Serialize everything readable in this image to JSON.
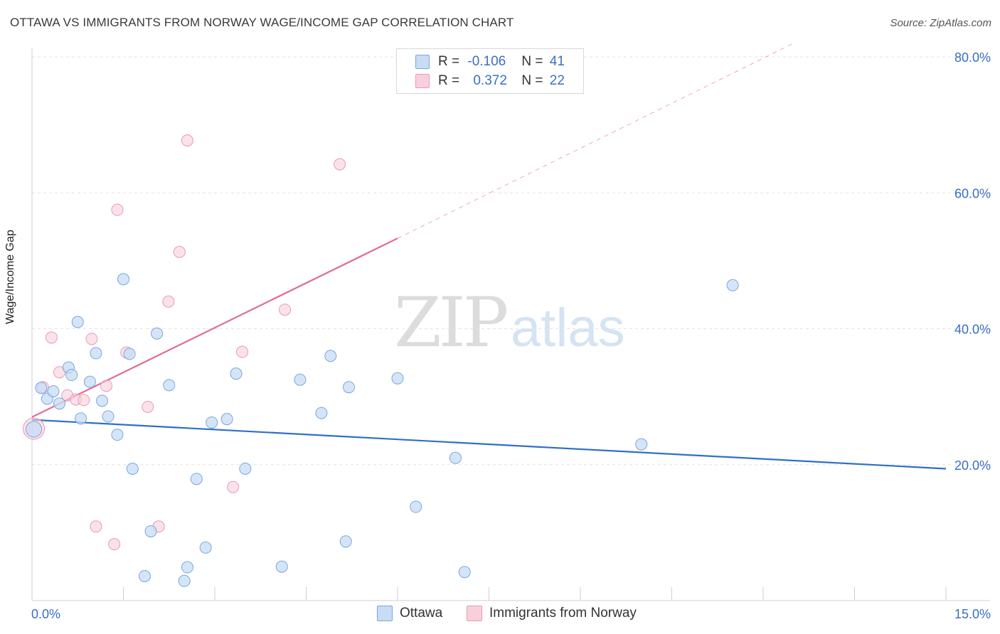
{
  "header": {
    "title": "OTTAWA VS IMMIGRANTS FROM NORWAY WAGE/INCOME GAP CORRELATION CHART",
    "source": "Source: ZipAtlas.com"
  },
  "watermark": {
    "zip": "ZIP",
    "atlas": "atlas"
  },
  "legend": {
    "rows": [
      {
        "r_label": "R = ",
        "r_value": "-0.106",
        "n_label": "N = ",
        "n_value": "41",
        "color": "#a9c8ef"
      },
      {
        "r_label": "R = ",
        "r_value": "0.372",
        "n_label": "N = ",
        "n_value": "22",
        "color": "#f5b8cb"
      }
    ]
  },
  "bottom_legend": [
    {
      "label": "Ottawa",
      "color": "#a9c8ef"
    },
    {
      "label": "Immigrants from Norway",
      "color": "#f5b8cb"
    }
  ],
  "colors": {
    "ottawa_fill": "#c7dcf5",
    "ottawa_stroke": "#7aa6de",
    "ottawa_line": "#2f6fc7",
    "norway_fill": "#f9cfdc",
    "norway_stroke": "#e89ab3",
    "norway_line": "#e06a94",
    "tick_label": "#3a6fc0",
    "grid": "#e3e3e3"
  },
  "chart_data": {
    "type": "scatter",
    "title": "OTTAWA VS IMMIGRANTS FROM NORWAY WAGE/INCOME GAP CORRELATION CHART",
    "xlabel": "",
    "ylabel": "Wage/Income Gap",
    "xlim": [
      0,
      15
    ],
    "ylim": [
      0,
      80
    ],
    "x_tick_labels": [
      {
        "value": 0,
        "label": "0.0%"
      },
      {
        "value": 15,
        "label": "15.0%"
      }
    ],
    "y_tick_labels": [
      {
        "value": 20,
        "label": "20.0%"
      },
      {
        "value": 40,
        "label": "40.0%"
      },
      {
        "value": 60,
        "label": "60.0%"
      },
      {
        "value": 80,
        "label": "80.0%"
      }
    ],
    "x_minor_ticks": [
      1.5,
      3.0,
      4.5,
      6.0,
      7.5,
      9.0,
      10.5,
      12.0,
      13.5,
      15.0
    ],
    "series": [
      {
        "name": "Ottawa",
        "points": [
          [
            0.03,
            25.2
          ],
          [
            0.15,
            31.3
          ],
          [
            0.25,
            29.7
          ],
          [
            0.35,
            30.8
          ],
          [
            0.45,
            29.0
          ],
          [
            0.6,
            34.3
          ],
          [
            0.65,
            33.2
          ],
          [
            0.75,
            41.0
          ],
          [
            0.8,
            26.8
          ],
          [
            0.95,
            32.2
          ],
          [
            1.05,
            36.4
          ],
          [
            1.15,
            29.4
          ],
          [
            1.25,
            27.1
          ],
          [
            1.4,
            24.4
          ],
          [
            1.5,
            47.3
          ],
          [
            1.6,
            36.3
          ],
          [
            1.65,
            19.4
          ],
          [
            1.85,
            3.6
          ],
          [
            1.95,
            10.2
          ],
          [
            2.05,
            39.3
          ],
          [
            2.25,
            31.7
          ],
          [
            2.5,
            2.9
          ],
          [
            2.55,
            4.9
          ],
          [
            2.7,
            17.9
          ],
          [
            2.85,
            7.8
          ],
          [
            2.95,
            26.2
          ],
          [
            3.2,
            26.7
          ],
          [
            3.35,
            33.4
          ],
          [
            3.5,
            19.4
          ],
          [
            4.1,
            5.0
          ],
          [
            4.4,
            32.5
          ],
          [
            4.75,
            27.6
          ],
          [
            4.9,
            36.0
          ],
          [
            5.15,
            8.7
          ],
          [
            5.2,
            31.4
          ],
          [
            6.0,
            32.7
          ],
          [
            6.3,
            13.8
          ],
          [
            6.95,
            21.0
          ],
          [
            7.1,
            4.2
          ],
          [
            10.0,
            23.0
          ],
          [
            11.5,
            46.4
          ]
        ]
      },
      {
        "name": "Immigrants from Norway",
        "points": [
          [
            0.03,
            25.3
          ],
          [
            0.18,
            31.4
          ],
          [
            0.32,
            38.7
          ],
          [
            0.45,
            33.6
          ],
          [
            0.58,
            30.2
          ],
          [
            0.72,
            29.6
          ],
          [
            0.85,
            29.5
          ],
          [
            0.98,
            38.5
          ],
          [
            1.05,
            10.9
          ],
          [
            1.22,
            31.6
          ],
          [
            1.35,
            8.3
          ],
          [
            1.4,
            57.5
          ],
          [
            1.55,
            36.5
          ],
          [
            1.9,
            28.5
          ],
          [
            2.08,
            10.9
          ],
          [
            2.24,
            44.0
          ],
          [
            2.42,
            51.3
          ],
          [
            2.55,
            67.7
          ],
          [
            3.3,
            16.7
          ],
          [
            3.45,
            36.6
          ],
          [
            4.15,
            42.8
          ],
          [
            5.05,
            64.2
          ]
        ]
      }
    ],
    "trendlines": [
      {
        "series": "Ottawa",
        "from": [
          0,
          26.6
        ],
        "to": [
          15,
          19.4
        ],
        "style": "solid"
      },
      {
        "series": "Immigrants from Norway",
        "from": [
          0,
          27.0
        ],
        "to": [
          6.0,
          53.3
        ],
        "style": "solid"
      },
      {
        "series": "Immigrants from Norway",
        "from": [
          6.0,
          53.3
        ],
        "to": [
          12.5,
          82.0
        ],
        "style": "dashed"
      }
    ]
  }
}
